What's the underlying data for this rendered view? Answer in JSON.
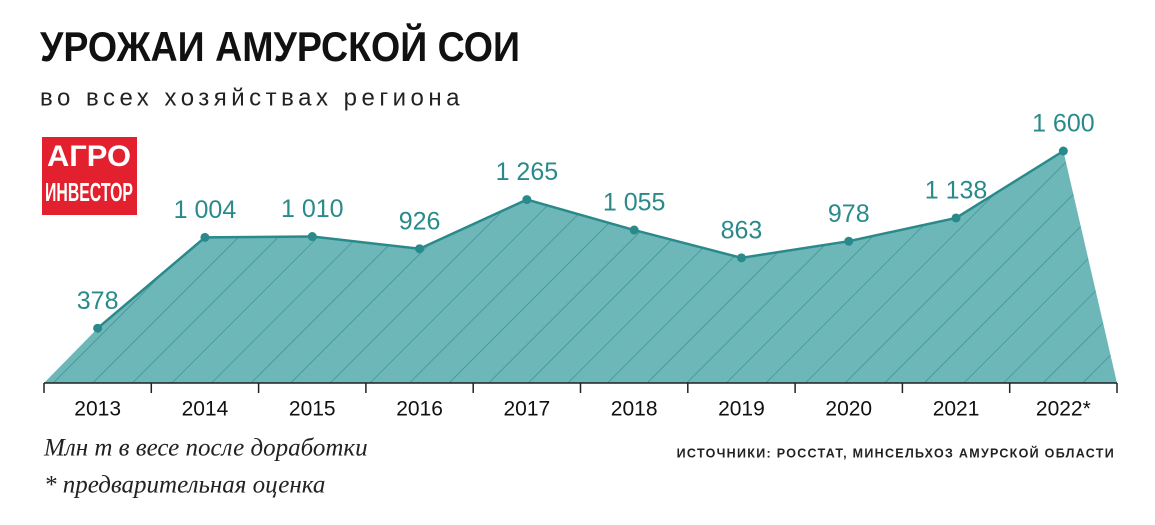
{
  "chart_data": {
    "type": "area",
    "title": "УРОЖАИ АМУРСКОЙ СОИ",
    "subtitle": "во всех хозяйствах региона",
    "logo": [
      "АГРО",
      "ИНВЕСТОР"
    ],
    "categories": [
      "2013",
      "2014",
      "2015",
      "2016",
      "2017",
      "2018",
      "2019",
      "2020",
      "2021",
      "2022*"
    ],
    "values": [
      378,
      1004,
      1010,
      926,
      1265,
      1055,
      863,
      978,
      1138,
      1600
    ],
    "value_labels": [
      "378",
      "1 004",
      "1 010",
      "926",
      "1 265",
      "1 055",
      "863",
      "978",
      "1 138",
      "1 600"
    ],
    "color": "#6db7b8",
    "line_color": "#2a8a8b",
    "unit_note": "Млн т в весе после доработки",
    "footnote": "* предварительная оценка",
    "source": "ИСТОЧНИКИ: РОССТАТ, МИНСЕЛЬХОЗ АМУРСКОЙ ОБЛАСТИ"
  }
}
